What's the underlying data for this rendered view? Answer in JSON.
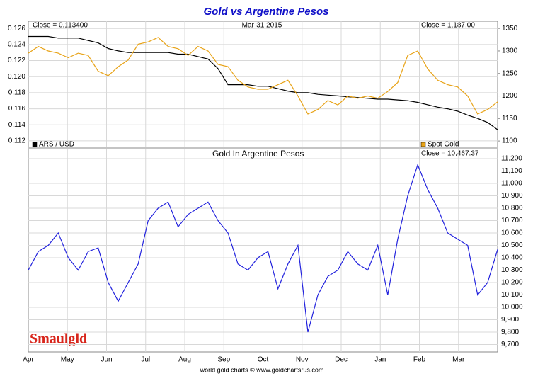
{
  "chart_data": [
    {
      "type": "line",
      "title": "Gold vs Argentine Pesos",
      "annotations": [
        "Close = 0.113400",
        "Mar-31  2015",
        "Close = 1,187.00"
      ],
      "ylim": [
        0.1112,
        0.1269
      ],
      "yticks": [
        0.112,
        0.114,
        0.116,
        0.118,
        {
          "value": 0.12,
          "label": "0.120"
        },
        0.122,
        0.124,
        0.126
      ],
      "y2lim": [
        1086,
        1366
      ],
      "y2ticks": [
        1100,
        1150,
        1200,
        1250,
        1300,
        1350
      ],
      "grid": true,
      "series": [
        {
          "name": "ARS / USD",
          "color": "#000000",
          "values": [
            0.125,
            0.125,
            0.125,
            0.1248,
            0.1248,
            0.1248,
            0.1245,
            0.1242,
            0.1235,
            0.1232,
            0.123,
            0.123,
            0.123,
            0.123,
            0.123,
            0.1228,
            0.1228,
            0.1225,
            0.1222,
            0.121,
            0.119,
            0.119,
            0.119,
            0.1188,
            0.1188,
            0.1185,
            0.1182,
            0.118,
            0.118,
            0.1178,
            0.1177,
            0.1176,
            0.1175,
            0.1174,
            0.1173,
            0.1172,
            0.1172,
            0.1171,
            0.117,
            0.1168,
            0.1165,
            0.1162,
            0.116,
            0.1157,
            0.1152,
            0.1148,
            0.1143,
            0.1134
          ]
        },
        {
          "name": "Spot Gold",
          "color": "#e8a317",
          "axis": "y2",
          "values": [
            1295,
            1310,
            1300,
            1295,
            1285,
            1295,
            1290,
            1255,
            1245,
            1265,
            1280,
            1315,
            1320,
            1330,
            1310,
            1305,
            1290,
            1310,
            1300,
            1270,
            1265,
            1235,
            1220,
            1215,
            1215,
            1225,
            1235,
            1200,
            1160,
            1170,
            1190,
            1180,
            1200,
            1195,
            1200,
            1195,
            1210,
            1230,
            1290,
            1300,
            1260,
            1235,
            1225,
            1220,
            1200,
            1160,
            1170,
            1187
          ]
        }
      ]
    },
    {
      "type": "line",
      "title": "Gold In Argentine Pesos",
      "annotations": [
        "Close = 10,467.37"
      ],
      "footer": "world gold charts © www.goldchartsrus.com",
      "logo": "Smaulgld",
      "xticks": [
        "Apr",
        "May",
        "Jun",
        "Jul",
        "Aug",
        "Sep",
        "Oct",
        "Nov",
        "Dec",
        "Jan",
        "Feb",
        "Mar"
      ],
      "ylim": [
        9640,
        11280
      ],
      "yticks": [
        {
          "value": 9700,
          "label": "9,700"
        },
        {
          "value": 9800,
          "label": "9,800"
        },
        {
          "value": 9900,
          "label": "9,900"
        },
        {
          "value": 10000,
          "label": "10,000"
        },
        {
          "value": 10100,
          "label": "10,100"
        },
        {
          "value": 10200,
          "label": "10,200"
        },
        {
          "value": 10300,
          "label": "10,300"
        },
        {
          "value": 10400,
          "label": "10,400"
        },
        {
          "value": 10500,
          "label": "10,500"
        },
        {
          "value": 10600,
          "label": "10,600"
        },
        {
          "value": 10700,
          "label": "10,700"
        },
        {
          "value": 10800,
          "label": "10,800"
        },
        {
          "value": 10900,
          "label": "10,900"
        },
        {
          "value": 11000,
          "label": "11,000"
        },
        {
          "value": 11100,
          "label": "11,100"
        },
        {
          "value": 11200,
          "label": "11,200"
        }
      ],
      "y_axis_side": "right",
      "grid": true,
      "series": [
        {
          "name": "Gold In Argentine Pesos",
          "color": "#2222dd",
          "values": [
            10300,
            10450,
            10500,
            10600,
            10400,
            10300,
            10450,
            10480,
            10200,
            10050,
            10200,
            10350,
            10700,
            10800,
            10850,
            10650,
            10750,
            10800,
            10850,
            10700,
            10600,
            10350,
            10300,
            10400,
            10450,
            10150,
            10350,
            10500,
            9800,
            10100,
            10250,
            10300,
            10450,
            10350,
            10300,
            10500,
            10100,
            10550,
            10900,
            11150,
            10950,
            10800,
            10600,
            10550,
            10500,
            10100,
            10200,
            10467
          ]
        }
      ]
    }
  ]
}
